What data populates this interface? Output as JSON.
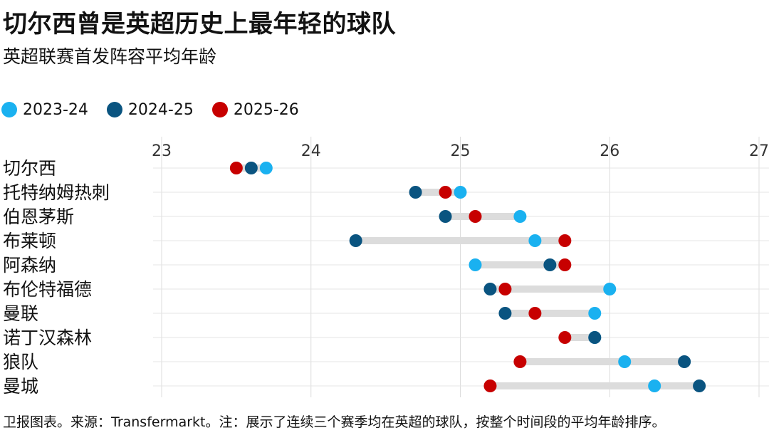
{
  "title": "切尔西曾是英超历史上最年轻的球队",
  "subtitle": "英超联赛首发阵容平均年龄",
  "footer": "卫报图表。来源：Transfermarkt。注：展示了连续三个赛季均在英超的球队，按整个时间段的平均年龄排序。",
  "chart_data": {
    "type": "dot-range",
    "title": "切尔西曾是英超历史上最年轻的球队",
    "subtitle": "英超联赛首发阵容平均年龄",
    "xlim": [
      23,
      27
    ],
    "xticks": [
      "23",
      "24",
      "25",
      "26",
      "27"
    ],
    "grid": true,
    "legend_position": "top-left",
    "categories": [
      "切尔西",
      "托特纳姆热刺",
      "伯恩茅斯",
      "布莱顿",
      "阿森纳",
      "布伦特福德",
      "曼联",
      "诺丁汉森林",
      "狼队",
      "曼城"
    ],
    "series": [
      {
        "name": "2023-24",
        "color": "#1ab1f0",
        "values": [
          23.7,
          25.0,
          25.4,
          25.5,
          25.1,
          26.0,
          25.9,
          25.9,
          26.1,
          26.3
        ]
      },
      {
        "name": "2024-25",
        "color": "#0a5480",
        "values": [
          23.6,
          24.7,
          24.9,
          24.3,
          25.6,
          25.2,
          25.3,
          25.9,
          26.5,
          26.6
        ]
      },
      {
        "name": "2025-26",
        "color": "#c70000",
        "values": [
          23.5,
          24.9,
          25.1,
          25.7,
          25.7,
          25.3,
          25.5,
          25.7,
          25.4,
          25.2
        ]
      }
    ]
  }
}
